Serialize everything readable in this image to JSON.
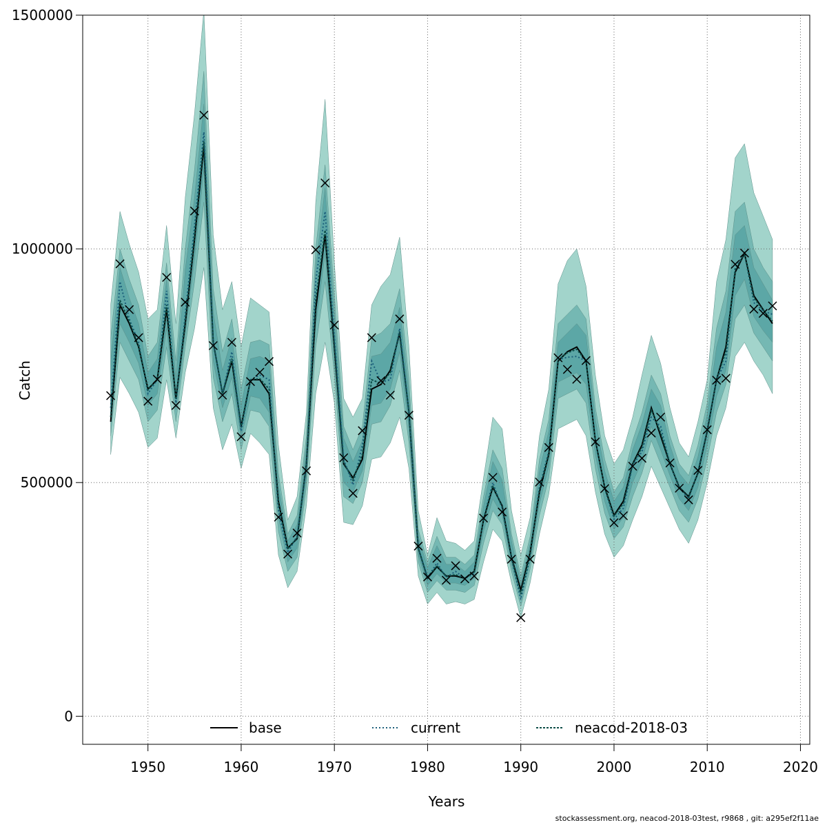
{
  "footer_text": "stockassessment.org, neacod-2018-03test, r9868 , git: a295ef2f11ae",
  "colors": {
    "band_outer": "#a2d4cb",
    "band_mid": "#75b8b3",
    "band_inner": "#5ca7a6",
    "grid": "#666666",
    "line": "#000000",
    "current_line": "#1b5e7a",
    "neacod_line": "#0d4d47"
  },
  "chart_data": {
    "type": "line",
    "title": "",
    "xlabel": "Years",
    "ylabel": "Catch",
    "xlim": [
      1943,
      2021
    ],
    "ylim": [
      -60000,
      1500000
    ],
    "x_ticks": [
      1950,
      1960,
      1970,
      1980,
      1990,
      2000,
      2010,
      2020
    ],
    "x_tick_labels": [
      "1950",
      "1960",
      "1970",
      "1980",
      "1990",
      "2000",
      "2010",
      "2020"
    ],
    "y_ticks": [
      0,
      500000,
      1000000,
      1500000
    ],
    "y_tick_labels": [
      "0",
      "500000",
      "1000000",
      "1500000"
    ],
    "grid": true,
    "legend_position": "bottom",
    "legend": [
      {
        "label": "base",
        "style": "solid"
      },
      {
        "label": "current",
        "style": "dotted"
      },
      {
        "label": "neacod-2018-03",
        "style": "dashed"
      }
    ],
    "years": [
      1946,
      1947,
      1948,
      1949,
      1950,
      1951,
      1952,
      1953,
      1954,
      1955,
      1956,
      1957,
      1958,
      1959,
      1960,
      1961,
      1962,
      1963,
      1964,
      1965,
      1966,
      1967,
      1968,
      1969,
      1970,
      1971,
      1972,
      1973,
      1974,
      1975,
      1976,
      1977,
      1978,
      1979,
      1980,
      1981,
      1982,
      1983,
      1984,
      1985,
      1986,
      1987,
      1988,
      1989,
      1990,
      1991,
      1992,
      1993,
      1994,
      1995,
      1996,
      1997,
      1998,
      1999,
      2000,
      2001,
      2002,
      2003,
      2004,
      2005,
      2006,
      2007,
      2008,
      2009,
      2010,
      2011,
      2012,
      2013,
      2014,
      2015,
      2016,
      2017
    ],
    "observed": [
      686000,
      968000,
      870000,
      810000,
      674000,
      721000,
      939000,
      665000,
      886000,
      1081000,
      1286000,
      793000,
      687000,
      800000,
      598000,
      716000,
      736000,
      759000,
      426000,
      347000,
      392000,
      525000,
      998000,
      1141000,
      837000,
      553000,
      477000,
      611000,
      810000,
      718000,
      687000,
      850000,
      644000,
      364000,
      298000,
      338000,
      291000,
      322000,
      294000,
      300000,
      424000,
      511000,
      437000,
      336000,
      211000,
      336000,
      501000,
      575000,
      767000,
      742000,
      721000,
      761000,
      587000,
      487000,
      414000,
      429000,
      535000,
      552000,
      606000,
      640000,
      542000,
      488000,
      463000,
      526000,
      613000,
      719000,
      723000,
      967000,
      991000,
      871000,
      862000,
      878000
    ],
    "series": [
      {
        "name": "base",
        "values": [
          630000,
          880000,
          840000,
          790000,
          700000,
          720000,
          870000,
          680000,
          840000,
          1020000,
          1220000,
          800000,
          690000,
          760000,
          620000,
          720000,
          720000,
          690000,
          460000,
          360000,
          380000,
          540000,
          870000,
          1030000,
          790000,
          540000,
          510000,
          550000,
          700000,
          710000,
          740000,
          820000,
          650000,
          360000,
          295000,
          320000,
          300000,
          300000,
          295000,
          310000,
          420000,
          490000,
          450000,
          340000,
          270000,
          350000,
          480000,
          560000,
          760000,
          780000,
          790000,
          760000,
          590000,
          490000,
          430000,
          460000,
          540000,
          580000,
          660000,
          600000,
          540000,
          490000,
          470000,
          520000,
          610000,
          720000,
          790000,
          950000,
          990000,
          900000,
          870000,
          840000
        ]
      },
      {
        "name": "current",
        "values": [
          660000,
          930000,
          850000,
          800000,
          690000,
          720000,
          910000,
          670000,
          860000,
          1050000,
          1250000,
          800000,
          690000,
          780000,
          610000,
          720000,
          730000,
          720000,
          440000,
          350000,
          385000,
          535000,
          930000,
          1080000,
          810000,
          550000,
          495000,
          580000,
          760000,
          715000,
          720000,
          830000,
          650000,
          360000,
          297000,
          328000,
          297000,
          310000,
          295000,
          305000,
          422000,
          500000,
          445000,
          338000,
          250000,
          342000,
          490000,
          567000,
          763000,
          768000,
          770000,
          760000,
          590000,
          488000,
          422000,
          445000,
          537000,
          566000,
          640000,
          620000,
          540000,
          489000,
          466000,
          523000,
          612000,
          720000,
          760000,
          960000,
          990000,
          885000,
          867000,
          860000
        ]
      },
      {
        "name": "neacod-2018-03",
        "values": [
          640000,
          890000,
          845000,
          792000,
          698000,
          721000,
          880000,
          678000,
          845000,
          1030000,
          1230000,
          800000,
          690000,
          765000,
          618000,
          720000,
          722000,
          700000,
          455000,
          358000,
          382000,
          538000,
          890000,
          1040000,
          795000,
          543000,
          505000,
          560000,
          720000,
          712000,
          735000,
          823000,
          650000,
          360000,
          296000,
          322000,
          299000,
          303000,
          295000,
          308000,
          421000,
          493000,
          448000,
          339000,
          262000,
          347000,
          484000,
          562000,
          762000,
          778000,
          785000,
          760000,
          590000,
          489000,
          428000,
          455000,
          539000,
          575000,
          655000,
          607000,
          541000,
          490000,
          468000,
          521000,
          611000,
          721000,
          780000,
          955000,
          990000,
          895000,
          869000,
          845000
        ]
      }
    ],
    "bands": [
      {
        "level": "outer",
        "lower": [
          560000,
          725000,
          690000,
          650000,
          575000,
          595000,
          720000,
          595000,
          735000,
          830000,
          960000,
          660000,
          570000,
          625000,
          530000,
          605000,
          585000,
          560000,
          345000,
          275000,
          310000,
          450000,
          690000,
          800000,
          670000,
          415000,
          410000,
          450000,
          550000,
          555000,
          585000,
          640000,
          530000,
          300000,
          240000,
          265000,
          240000,
          245000,
          240000,
          250000,
          330000,
          400000,
          375000,
          285000,
          210000,
          285000,
          390000,
          475000,
          615000,
          625000,
          635000,
          600000,
          480000,
          390000,
          340000,
          365000,
          420000,
          470000,
          535000,
          490000,
          445000,
          400000,
          370000,
          420000,
          500000,
          600000,
          660000,
          770000,
          800000,
          760000,
          730000,
          690000
        ],
        "upper": [
          880000,
          1080000,
          1010000,
          950000,
          850000,
          870000,
          1050000,
          840000,
          1110000,
          1290000,
          1510000,
          1030000,
          870000,
          930000,
          790000,
          895000,
          880000,
          865000,
          580000,
          420000,
          470000,
          650000,
          1100000,
          1320000,
          970000,
          680000,
          640000,
          680000,
          880000,
          920000,
          945000,
          1025000,
          790000,
          440000,
          345000,
          425000,
          375000,
          370000,
          355000,
          375000,
          510000,
          640000,
          615000,
          440000,
          345000,
          425000,
          600000,
          700000,
          925000,
          975000,
          1000000,
          920000,
          730000,
          600000,
          540000,
          570000,
          640000,
          730000,
          815000,
          755000,
          660000,
          585000,
          555000,
          630000,
          720000,
          930000,
          1020000,
          1195000,
          1225000,
          1120000,
          1070000,
          1020000
        ]
      },
      {
        "level": "mid",
        "lower": [
          600000,
          800000,
          760000,
          720000,
          630000,
          655000,
          790000,
          630000,
          790000,
          930000,
          1100000,
          725000,
          630000,
          690000,
          570000,
          655000,
          650000,
          620000,
          395000,
          310000,
          340000,
          490000,
          790000,
          930000,
          730000,
          470000,
          455000,
          500000,
          625000,
          630000,
          665000,
          740000,
          585000,
          330000,
          265000,
          290000,
          270000,
          270000,
          265000,
          280000,
          370000,
          440000,
          410000,
          310000,
          235000,
          315000,
          430000,
          510000,
          680000,
          690000,
          700000,
          670000,
          530000,
          435000,
          380000,
          405000,
          470000,
          520000,
          590000,
          540000,
          490000,
          440000,
          415000,
          465000,
          550000,
          650000,
          710000,
          850000,
          880000,
          820000,
          790000,
          760000
        ],
        "upper": [
          810000,
          1000000,
          935000,
          880000,
          770000,
          800000,
          970000,
          760000,
          1000000,
          1170000,
          1380000,
          915000,
          780000,
          850000,
          700000,
          800000,
          805000,
          795000,
          520000,
          390000,
          430000,
          600000,
          1000000,
          1180000,
          900000,
          620000,
          570000,
          620000,
          810000,
          820000,
          840000,
          915000,
          720000,
          400000,
          330000,
          385000,
          340000,
          340000,
          325000,
          345000,
          470000,
          570000,
          530000,
          390000,
          300000,
          385000,
          550000,
          635000,
          840000,
          860000,
          880000,
          850000,
          660000,
          550000,
          480000,
          510000,
          590000,
          650000,
          730000,
          690000,
          600000,
          540000,
          515000,
          580000,
          670000,
          830000,
          910000,
          1080000,
          1100000,
          1000000,
          960000,
          930000
        ]
      },
      {
        "level": "inner",
        "lower": [
          630000,
          840000,
          800000,
          755000,
          665000,
          690000,
          830000,
          655000,
          815000,
          980000,
          1170000,
          760000,
          660000,
          725000,
          595000,
          685000,
          680000,
          650000,
          425000,
          330000,
          360000,
          510000,
          835000,
          990000,
          760000,
          500000,
          480000,
          525000,
          665000,
          670000,
          700000,
          780000,
          615000,
          345000,
          280000,
          305000,
          285000,
          285000,
          280000,
          295000,
          395000,
          465000,
          430000,
          325000,
          248000,
          330000,
          455000,
          535000,
          715000,
          725000,
          735000,
          710000,
          560000,
          460000,
          400000,
          425000,
          500000,
          545000,
          620000,
          570000,
          515000,
          465000,
          440000,
          490000,
          580000,
          685000,
          740000,
          900000,
          935000,
          855000,
          825000,
          800000
        ],
        "upper": [
          760000,
          960000,
          895000,
          840000,
          735000,
          765000,
          935000,
          725000,
          955000,
          1110000,
          1310000,
          865000,
          740000,
          810000,
          665000,
          765000,
          770000,
          760000,
          495000,
          375000,
          410000,
          575000,
          960000,
          1130000,
          860000,
          595000,
          545000,
          590000,
          770000,
          775000,
          800000,
          875000,
          690000,
          385000,
          318000,
          365000,
          325000,
          325000,
          310000,
          330000,
          450000,
          545000,
          505000,
          375000,
          285000,
          370000,
          525000,
          610000,
          800000,
          820000,
          840000,
          815000,
          635000,
          525000,
          460000,
          490000,
          570000,
          625000,
          700000,
          665000,
          580000,
          520000,
          495000,
          555000,
          645000,
          790000,
          865000,
          1030000,
          1050000,
          960000,
          925000,
          890000
        ]
      }
    ]
  }
}
